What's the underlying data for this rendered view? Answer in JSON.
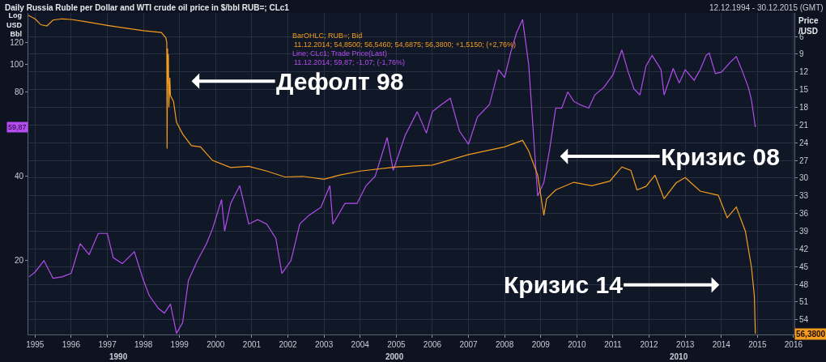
{
  "chart_data": {
    "type": "line",
    "title": "Daily Russia Ruble per Dollar and WTI crude oil price in $/bbl RUB=; CLc1",
    "subtitle": "12.12.1994 - 30.12.2015 (GMT)",
    "ylabel": "Log USD Bbl",
    "y2label": "Price /USD",
    "log": "y",
    "grid": true,
    "legend": false,
    "marker": "none",
    "line_style": "solid",
    "xlim": [
      "1994-10-25",
      "2016-01-10"
    ],
    "xticks": [
      {
        "value": "1995",
        "label": "1995"
      },
      {
        "value": "1996",
        "label": "1996"
      },
      {
        "value": "1997",
        "label": "1997"
      },
      {
        "value": "1998",
        "label": "1998"
      },
      {
        "value": "1999",
        "label": "1999"
      },
      {
        "value": "2000",
        "label": "2000"
      },
      {
        "value": "2001",
        "label": "2001"
      },
      {
        "value": "2002",
        "label": "2002"
      },
      {
        "value": "2003",
        "label": "2003"
      },
      {
        "value": "2004",
        "label": "2004"
      },
      {
        "value": "2005",
        "label": "2005"
      },
      {
        "value": "2006",
        "label": "2006"
      },
      {
        "value": "2007",
        "label": "2007"
      },
      {
        "value": "2008",
        "label": "2008"
      },
      {
        "value": "2009",
        "label": "2009"
      },
      {
        "value": "2010",
        "label": "2010"
      },
      {
        "value": "2011",
        "label": "2011"
      },
      {
        "value": "2012",
        "label": "2012"
      },
      {
        "value": "2013",
        "label": "2013"
      },
      {
        "value": "2014",
        "label": "2014"
      },
      {
        "value": "2015",
        "label": "2015"
      },
      {
        "value": "2016",
        "label": "2016"
      }
    ],
    "ylim": [
      10.9,
      153
    ],
    "yticks": [
      20,
      40,
      80,
      100,
      120
    ],
    "y2lim": [
      56.5,
      2
    ],
    "y2ticks": [
      6,
      9,
      12,
      15,
      18,
      21,
      24,
      27,
      30,
      33,
      36,
      39,
      42,
      45,
      48,
      51,
      54
    ],
    "series": [
      {
        "name": "BarOHLC; RUB=; Bid",
        "color": "#f39c1f",
        "axis": "y2",
        "x": [
          "1994-10-25",
          "1995-01",
          "1995-03",
          "1995-05",
          "1995-07",
          "1995-10",
          "1996-01",
          "1996-06",
          "1997-01",
          "1997-06",
          "1998-01",
          "1998-07",
          "1998-08-15",
          "1998-08-25",
          "1998-08-28",
          "1998-09-02",
          "1998-09-05",
          "1998-09-10",
          "1998-09-15",
          "1998-09-25",
          "1998-10",
          "1998-11",
          "1998-12",
          "1999-02",
          "1999-05",
          "1999-08",
          "1999-12",
          "2000-06",
          "2000-12",
          "2001-06",
          "2001-12",
          "2002-06",
          "2003-01",
          "2003-06",
          "2004-01",
          "2005-01",
          "2006-01",
          "2007-01",
          "2008-01",
          "2008-07",
          "2008-09",
          "2008-12",
          "2009-02",
          "2009-03",
          "2009-06",
          "2009-12",
          "2010-06",
          "2010-12",
          "2011-04",
          "2011-07",
          "2011-09",
          "2011-12",
          "2012-03",
          "2012-06",
          "2012-10",
          "2013-01",
          "2013-06",
          "2013-12",
          "2014-03",
          "2014-06",
          "2014-09",
          "2014-11",
          "2014-12-01",
          "2014-12-11"
        ],
        "values": [
          2.4,
          3.0,
          4.0,
          4.2,
          3.2,
          3.0,
          3.1,
          3.5,
          4.1,
          4.5,
          5.0,
          5.3,
          6.2,
          7.0,
          25,
          8,
          14,
          9,
          18,
          13,
          16,
          17,
          20.5,
          22.5,
          24.5,
          24.7,
          27,
          28.2,
          28,
          28.8,
          29.8,
          29.7,
          30.2,
          29.5,
          28.8,
          28.1,
          27.8,
          26,
          24.7,
          23.6,
          25.4,
          29.5,
          36.3,
          33.5,
          32,
          30.7,
          31.3,
          30.5,
          28.1,
          28.7,
          32,
          31.4,
          29.5,
          33.5,
          30.8,
          29.9,
          32.2,
          32.9,
          36.7,
          34.9,
          39,
          45,
          50,
          56.38
        ]
      },
      {
        "name": "Line; CLc1; Trade Price(Last)",
        "color": "#b44cf0",
        "x": [
          "1994-11",
          "1995-01",
          "1995-04",
          "1995-07",
          "1995-10",
          "1996-01",
          "1996-04",
          "1996-07",
          "1996-10",
          "1997-01",
          "1997-03",
          "1997-06",
          "1997-10",
          "1998-01",
          "1998-03",
          "1998-06",
          "1998-08",
          "1998-10",
          "1998-12",
          "1999-02",
          "1999-04",
          "1999-07",
          "1999-10",
          "1999-12",
          "2000-03",
          "2000-04",
          "2000-06",
          "2000-09",
          "2000-12",
          "2001-03",
          "2001-06",
          "2001-09",
          "2001-11",
          "2002-02",
          "2002-05",
          "2002-08",
          "2002-12",
          "2003-03",
          "2003-04",
          "2003-08",
          "2003-12",
          "2004-03",
          "2004-06",
          "2004-10",
          "2004-12",
          "2005-04",
          "2005-08",
          "2005-11",
          "2006-01",
          "2006-04",
          "2006-07",
          "2006-10",
          "2007-01",
          "2007-04",
          "2007-08",
          "2007-11",
          "2008-01",
          "2008-03",
          "2008-05",
          "2008-07",
          "2008-09",
          "2008-10",
          "2008-12",
          "2009-02",
          "2009-04",
          "2009-06",
          "2009-08",
          "2009-10",
          "2009-12",
          "2010-02",
          "2010-05",
          "2010-07",
          "2010-10",
          "2011-01",
          "2011-04",
          "2011-06",
          "2011-08",
          "2011-10",
          "2011-12",
          "2012-02",
          "2012-05",
          "2012-06",
          "2012-09",
          "2012-11",
          "2013-01",
          "2013-04",
          "2013-06",
          "2013-08",
          "2013-09",
          "2013-11",
          "2014-01",
          "2014-04",
          "2014-06",
          "2014-08",
          "2014-10",
          "2014-11",
          "2014-12-11"
        ],
        "values": [
          17.5,
          18.2,
          20,
          17.3,
          17.5,
          18,
          23,
          21,
          25,
          25,
          20.5,
          19.5,
          21.5,
          17,
          15,
          13.5,
          13,
          14,
          11,
          12,
          17,
          20,
          23,
          26,
          33,
          25.5,
          32,
          37,
          27,
          28,
          27,
          24,
          18,
          20,
          27,
          29,
          31,
          37,
          27,
          32,
          32,
          37,
          40,
          55,
          42,
          56,
          68,
          57,
          68,
          72,
          76,
          58,
          52,
          65,
          72,
          96,
          90,
          110,
          130,
          145,
          100,
          70,
          34,
          38,
          50,
          70,
          70,
          80,
          74,
          72,
          70,
          78,
          83,
          92,
          113,
          95,
          82,
          78,
          99,
          108,
          96,
          78,
          97,
          86,
          96,
          88,
          96,
          108,
          110,
          93,
          94,
          102,
          107,
          95,
          83,
          75,
          59.87
        ]
      }
    ],
    "annotations": [
      "11.12.2014; 54,8500; 56,5460; 54,6875; 56,3800; +1,5150; (+2,76%)",
      "11.12.2014; 59,87; -1,07; (-1,76%)",
      "Дефолт 98",
      "Кризис 08",
      "Кризис 14",
      "1990",
      "2000",
      "2010",
      "56,3800",
      "59,87"
    ]
  }
}
